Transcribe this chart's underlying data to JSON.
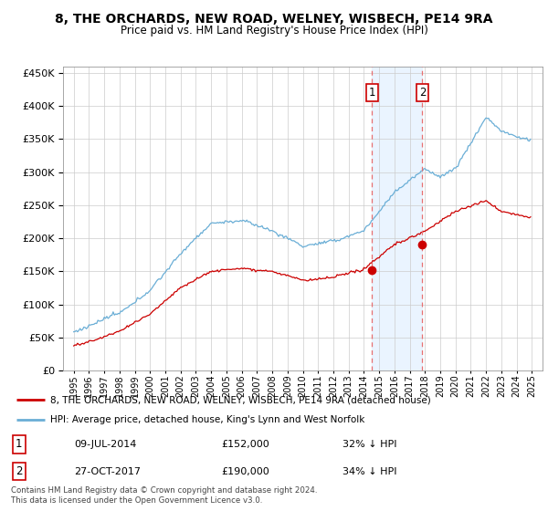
{
  "title": "8, THE ORCHARDS, NEW ROAD, WELNEY, WISBECH, PE14 9RA",
  "subtitle": "Price paid vs. HM Land Registry's House Price Index (HPI)",
  "legend_line1": "8, THE ORCHARDS, NEW ROAD, WELNEY, WISBECH, PE14 9RA (detached house)",
  "legend_line2": "HPI: Average price, detached house, King's Lynn and West Norfolk",
  "transaction1_date": "09-JUL-2014",
  "transaction1_price": "£152,000",
  "transaction1_hpi": "32% ↓ HPI",
  "transaction2_date": "27-OCT-2017",
  "transaction2_price": "£190,000",
  "transaction2_hpi": "34% ↓ HPI",
  "footnote": "Contains HM Land Registry data © Crown copyright and database right 2024.\nThis data is licensed under the Open Government Licence v3.0.",
  "hpi_color": "#6aaed6",
  "price_color": "#cc0000",
  "marker_color": "#cc0000",
  "vline_color": "#e87070",
  "shade_color": "#ddeeff",
  "ylim": [
    0,
    460000
  ],
  "yticks": [
    0,
    50000,
    100000,
    150000,
    200000,
    250000,
    300000,
    350000,
    400000,
    450000
  ],
  "transaction1_x": 2014.54,
  "transaction1_y": 152000,
  "transaction2_x": 2017.83,
  "transaction2_y": 190000,
  "xlim_left": 1994.3,
  "xlim_right": 2025.7
}
